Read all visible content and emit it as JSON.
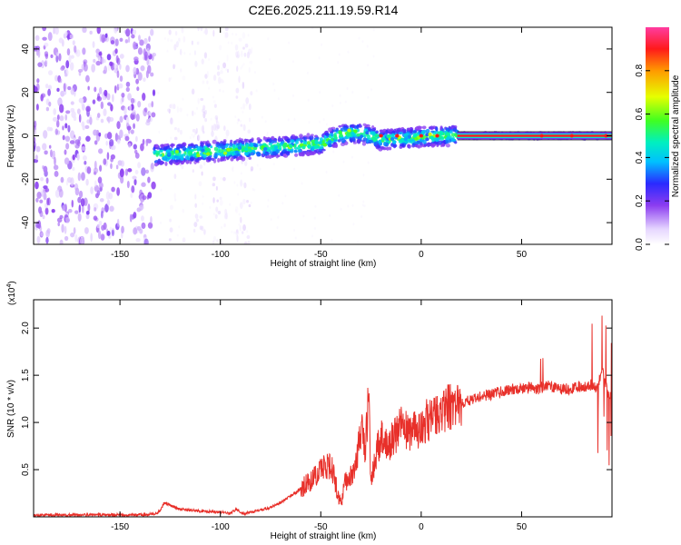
{
  "title": "C2E6.2025.211.19.59.R14",
  "colors": {
    "snr_line": "#e8302a",
    "axis": "#000000",
    "background": "#ffffff"
  },
  "chart_data": [
    {
      "type": "heatmap",
      "xlabel": "Height of straight line (km)",
      "ylabel": "Frequency (Hz)",
      "xlim": [
        -193,
        95
      ],
      "ylim": [
        -50,
        50
      ],
      "x_ticks": [
        "-150",
        "-100",
        "-50",
        "0",
        "50"
      ],
      "x_tick_values": [
        -150,
        -100,
        -50,
        0,
        50
      ],
      "y_ticks": [
        "-40",
        "-20",
        "0",
        "20",
        "40"
      ],
      "y_tick_values": [
        -40,
        -20,
        0,
        20,
        40
      ],
      "colorbar": {
        "label": "Normalized spectral amplitude",
        "range": [
          0,
          1
        ],
        "ticks": [
          "0.0",
          "0.2",
          "0.4",
          "0.6",
          "0.8"
        ],
        "tick_values": [
          0.0,
          0.2,
          0.4,
          0.6,
          0.8
        ],
        "colormap": "rainbow (white → violet → blue → cyan → green → yellow → red → magenta)"
      },
      "features": [
        {
          "region": "noise",
          "x_range": [
            -193,
            -133
          ],
          "freq_range": [
            -50,
            50
          ],
          "amplitude": 0.1
        },
        {
          "region": "sparse-noise",
          "x_range": [
            -125,
            -85
          ],
          "freq_range": [
            -50,
            50
          ],
          "amplitude": 0.03
        },
        {
          "region": "signal-ridge",
          "x_range": [
            -133,
            95
          ],
          "freq_center": [
            -9,
            0
          ],
          "amplitude": [
            0.3,
            0.9
          ]
        },
        {
          "region": "carrier-line",
          "x_range": [
            18,
            95
          ],
          "freq": 0,
          "amplitude": 0.9
        }
      ]
    },
    {
      "type": "line",
      "xlabel": "Height of straight line (km)",
      "ylabel": "SNR (10 * v/v)",
      "y_scale_label": "(x10",
      "y_scale_exponent": "4",
      "xlim": [
        -193,
        95
      ],
      "ylim": [
        0,
        2.3
      ],
      "x_ticks": [
        "-150",
        "-100",
        "-50",
        "0",
        "50"
      ],
      "x_tick_values": [
        -150,
        -100,
        -50,
        0,
        50
      ],
      "y_ticks": [
        "0.5",
        "1.0",
        "1.5",
        "2.0"
      ],
      "y_tick_values": [
        0.5,
        1.0,
        1.5,
        2.0
      ],
      "series": [
        {
          "x": [
            -193,
            -170,
            -150,
            -140,
            -133,
            -130,
            -128,
            -120,
            -110,
            -100,
            -95,
            -92,
            -88,
            -85,
            -80,
            -75,
            -70,
            -65,
            -60,
            -55,
            -50,
            -45,
            -42,
            -40,
            -38,
            -35,
            -32,
            -30,
            -28,
            -26,
            -25,
            -24,
            -22,
            -20,
            -18,
            -15,
            -12,
            -10,
            -8,
            -5,
            -2,
            0,
            3,
            6,
            10,
            15,
            20,
            25,
            30,
            35,
            40,
            45,
            50,
            55,
            58,
            62,
            65,
            70,
            75,
            80,
            85,
            88,
            90,
            92,
            94,
            95
          ],
          "y": [
            0.02,
            0.02,
            0.02,
            0.02,
            0.03,
            0.06,
            0.15,
            0.08,
            0.06,
            0.05,
            0.04,
            0.08,
            0.03,
            0.05,
            0.07,
            0.1,
            0.15,
            0.22,
            0.3,
            0.38,
            0.5,
            0.55,
            0.3,
            0.15,
            0.35,
            0.42,
            0.6,
            0.95,
            0.7,
            1.25,
            0.3,
            0.5,
            0.7,
            0.85,
            0.75,
            0.8,
            0.9,
            1.0,
            0.95,
            0.88,
            0.92,
            0.98,
            1.02,
            1.05,
            1.1,
            1.18,
            1.2,
            1.25,
            1.28,
            1.3,
            1.33,
            1.35,
            1.36,
            1.38,
            1.35,
            1.4,
            1.38,
            1.35,
            1.36,
            1.38,
            1.4,
            1.35,
            1.6,
            1.4,
            1.2,
            1.5
          ]
        }
      ]
    }
  ]
}
